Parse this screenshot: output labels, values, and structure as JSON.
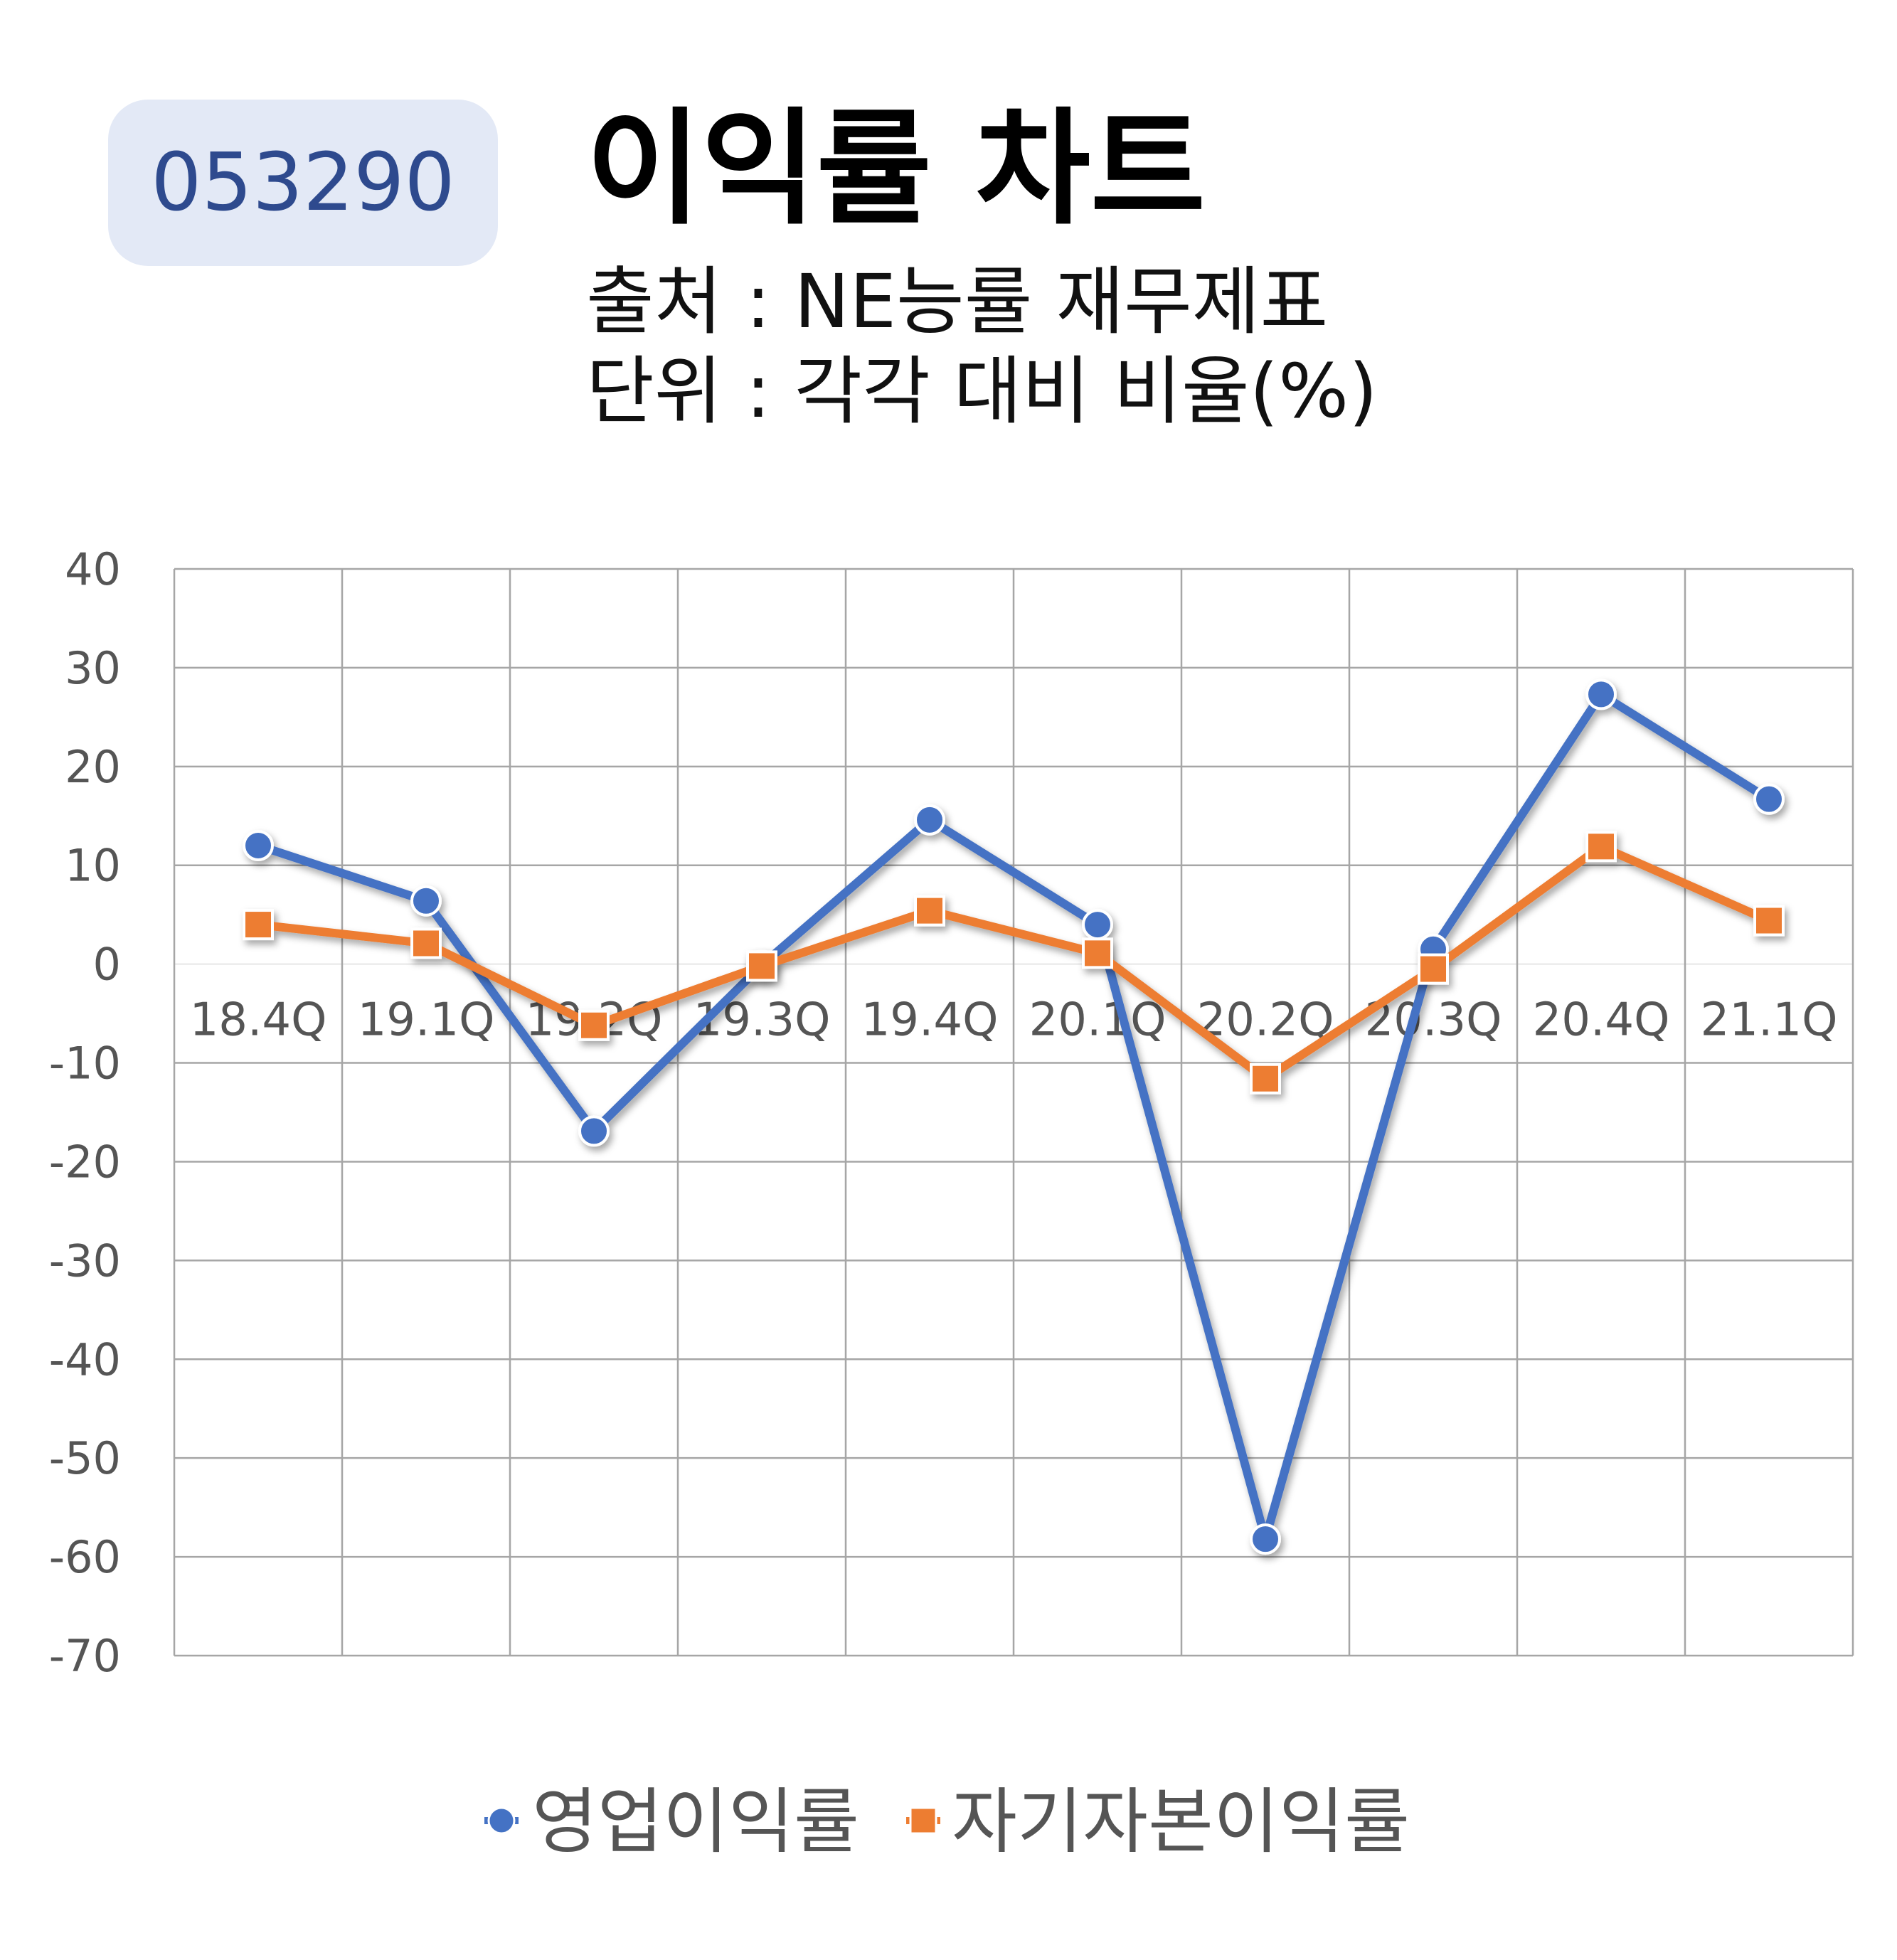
{
  "badge": {
    "code": "053290"
  },
  "header": {
    "title": "이익률 차트",
    "source": "출처 : NE능률 재무제표",
    "unit": "단위 : 각각 대비 비율(%)"
  },
  "colors": {
    "series1": "#4472c4",
    "series2": "#ed7d31",
    "grid": "#a6a6a6",
    "badge_bg": "#e3e9f6",
    "badge_text": "#2e4a8e"
  },
  "chart_data": {
    "type": "line",
    "categories": [
      "18.4Q",
      "19.1Q",
      "19.2Q",
      "19.3Q",
      "19.4Q",
      "20.1Q",
      "20.2Q",
      "20.3Q",
      "20.4Q",
      "21.1Q"
    ],
    "series": [
      {
        "name": "영업이익률",
        "marker": "circle",
        "values": [
          12.0,
          6.4,
          -16.9,
          -0.1,
          14.6,
          4.0,
          -58.2,
          1.5,
          27.3,
          16.7
        ]
      },
      {
        "name": "자기자본이익률",
        "marker": "square",
        "values": [
          4.0,
          2.1,
          -6.2,
          -0.2,
          5.4,
          1.1,
          -11.6,
          -0.5,
          11.9,
          4.4
        ]
      }
    ],
    "yticks": [
      "40",
      "30",
      "20",
      "10",
      "0",
      "-10",
      "-20",
      "-30",
      "-40",
      "-50",
      "-60",
      "-70"
    ],
    "ylim": [
      -70,
      40
    ],
    "grid": true,
    "legend": "bottom"
  }
}
